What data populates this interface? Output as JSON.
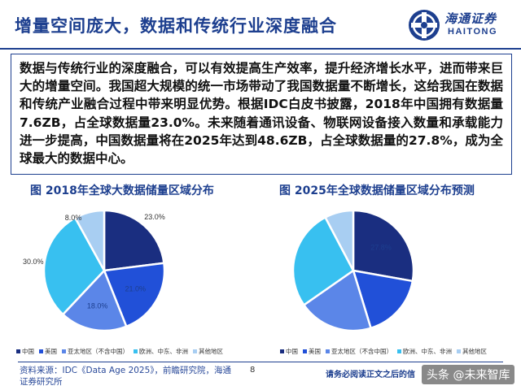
{
  "header": {
    "title": "增量空间庞大，数据和传统行业深度融合",
    "logo_cn": "海通证券",
    "logo_en": "HAITONG"
  },
  "body_text": "数据与传统行业的深度融合，可以有效提高生产效率，提升经济增长水平，进而带来巨大的增量空间。我国超大规模的统一市场带动了我国数据量不断增长，这给我国在数据和传统产业融合过程中带来明显优势。根据IDC白皮书披露，2018年中国拥有数据量7.6ZB，占全球数据量23.0%。未来随着通讯设备、物联网设备接入数量和承载能力进一步提高，中国数据量将在2025年达到48.6ZB，占全球数据量的27.8%，成为全球最大的数据中心。",
  "chart_data": [
    {
      "type": "pie",
      "title": "图 2018年全球大数据储量区域分布",
      "categories": [
        "中国",
        "美国",
        "亚太地区（不含中国）",
        "欧洲、中东、非洲",
        "其他地区"
      ],
      "values": [
        23.0,
        21.0,
        18.0,
        30.0,
        8.0
      ],
      "value_labels": [
        "23.0%",
        "21.0%",
        "18.0%",
        "30.0%",
        "8.0%"
      ],
      "colors": [
        "#1a2e80",
        "#2150d8",
        "#5b86e8",
        "#38c0f0",
        "#a8cef2"
      ],
      "legend_position": "bottom"
    },
    {
      "type": "pie",
      "title": "图 2025年全球数据储量区域分布预测",
      "categories": [
        "中国",
        "美国",
        "亚太地区（不含中国）",
        "欧洲、中东、非洲",
        "其他地区"
      ],
      "values": [
        27.8,
        17.5,
        20.0,
        27.0,
        7.7
      ],
      "value_labels": [
        "27.8%",
        "",
        "",
        "",
        ""
      ],
      "colors": [
        "#1a2e80",
        "#2150d8",
        "#5b86e8",
        "#38c0f0",
        "#a8cef2"
      ],
      "legend_position": "bottom"
    }
  ],
  "footer": {
    "source": "资料来源：IDC《Data Age 2025》，前瞻研究院，海通证券研究所",
    "page_number": "8",
    "notice": "请务必阅读正文之后的信",
    "watermark": "头条 @未来智库"
  }
}
